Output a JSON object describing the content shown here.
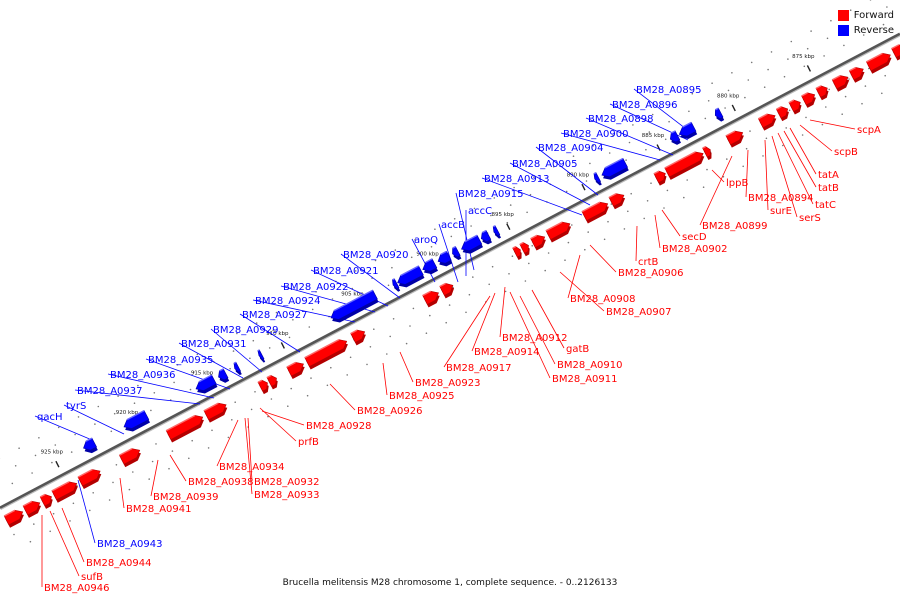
{
  "colors": {
    "forward": "#ff0000",
    "forward_dark": "#b30000",
    "forward_light": "#ff6a6a",
    "reverse": "#0000ff",
    "reverse_dark": "#0000a6",
    "reverse_light": "#6a6aff",
    "backbone": "#888888",
    "tick": "#222222"
  },
  "legend": [
    {
      "label": "Forward",
      "color": "#ff0000"
    },
    {
      "label": "Reverse",
      "color": "#0000ff"
    }
  ],
  "caption": "Brucella melitensis M28 chromosome 1, complete sequence. - 0..2126133",
  "ticks": [
    "875 kbp",
    "880 kbp",
    "885 kbp",
    "890 kbp",
    "895 kbp",
    "900 kbp",
    "905 kbp",
    "910 kbp",
    "915 kbp",
    "920 kbp",
    "925 kbp"
  ],
  "forward_labels": [
    "scpA",
    "scpB",
    "tatA",
    "tatB",
    "tatC",
    "serS",
    "surE",
    "BM28_A0894",
    "lppB",
    "BM28_A0899",
    "secD",
    "BM28_A0902",
    "crtB",
    "BM28_A0906",
    "BM28_A0907",
    "BM28_A0908",
    "gatB",
    "BM28_A0910",
    "BM28_A0911",
    "BM28_A0912",
    "BM28_A0914",
    "BM28_A0917",
    "BM28_A0923",
    "BM28_A0925",
    "BM28_A0926",
    "BM28_A0928",
    "prfB",
    "BM28_A0932",
    "BM28_A0933",
    "BM28_A0934",
    "BM28_A0938",
    "BM28_A0939",
    "BM28_A0941",
    "BM28_A0944",
    "sufB",
    "BM28_A0946"
  ],
  "reverse_labels": [
    "BM28_A0895",
    "BM28_A0896",
    "BM28_A0898",
    "BM28_A0900",
    "BM28_A0904",
    "BM28_A0905",
    "BM28_A0913",
    "BM28_A0915",
    "accC",
    "accB",
    "aroQ",
    "BM28_A0920",
    "BM28_A0921",
    "BM28_A0922",
    "BM28_A0924",
    "BM28_A0927",
    "BM28_A0929",
    "BM28_A0931",
    "BM28_A0935",
    "BM28_A0936",
    "BM28_A0937",
    "tyrS",
    "qacH",
    "BM28_A0943"
  ]
}
